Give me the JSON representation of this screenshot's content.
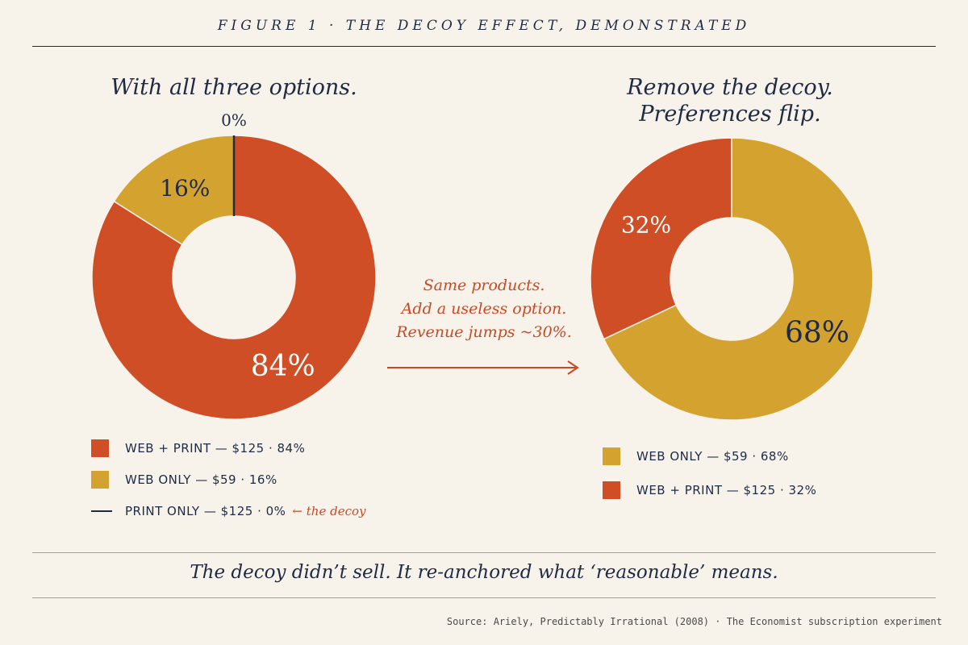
{
  "figure_title": "FIGURE 1 · THE DECOY EFFECT, DEMONSTRATED",
  "chart_data": [
    {
      "type": "pie",
      "donut": true,
      "title": "With all three options.",
      "slices": [
        {
          "label": "WEB + PRINT — $125 · 84%",
          "value": 84,
          "display": "84%",
          "color": "#cf4e25",
          "text_color": "#ffffff"
        },
        {
          "label": "WEB ONLY — $59 · 16%",
          "value": 16,
          "display": "16%",
          "color": "#d4a22f",
          "text_color": "#1f2a44"
        },
        {
          "label": "PRINT ONLY — $125 · 0%",
          "value": 0,
          "display": "0%",
          "color": "#1f2a44",
          "text_color": "#1f2a44",
          "note": "← the decoy"
        }
      ]
    },
    {
      "type": "pie",
      "donut": true,
      "title": "Remove the decoy. Preferences flip.",
      "title_lines": [
        "Remove the decoy.",
        "Preferences flip."
      ],
      "slices": [
        {
          "label": "WEB ONLY — $59 · 68%",
          "value": 68,
          "display": "68%",
          "color": "#d4a22f",
          "text_color": "#1f2a44"
        },
        {
          "label": "WEB + PRINT — $125 · 32%",
          "value": 32,
          "display": "32%",
          "color": "#cf4e25",
          "text_color": "#ffffff"
        }
      ]
    }
  ],
  "annotation": {
    "lines": [
      "Same products.",
      "Add a useless option.",
      "Revenue jumps ~30%."
    ]
  },
  "takeaway": "The decoy didn’t sell. It re-anchored what ‘reasonable’ means.",
  "source": "Source: Ariely, Predictably Irrational (2008) · The Economist subscription experiment"
}
